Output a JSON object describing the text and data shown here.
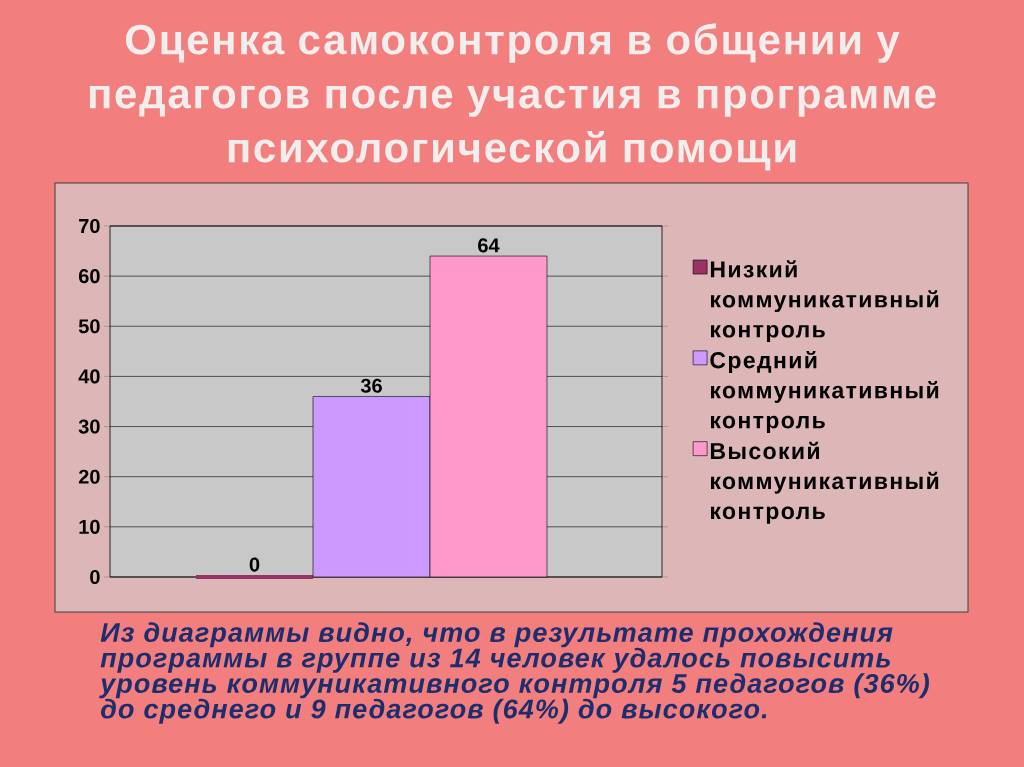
{
  "chart_data": {
    "type": "bar",
    "title": "Оценка самоконтроля в общении у педагогов после участия в программе психологической помощи",
    "categories": [
      null
    ],
    "series": [
      {
        "name": "Низкий коммуникативный контроль",
        "color": "#993366",
        "values": [
          0
        ]
      },
      {
        "name": "Средний коммуникативный контроль",
        "color": "#CC99FF",
        "values": [
          36
        ]
      },
      {
        "name": "Высокий коммуникативный контроль",
        "color": "#FF99CC",
        "values": [
          64
        ]
      }
    ],
    "ylim": [
      0,
      70
    ],
    "yticks": [
      0,
      10,
      20,
      30,
      40,
      50,
      60,
      70
    ],
    "grid": "y",
    "legend": "right",
    "data_labels": true,
    "annotations": [
      "Из диаграммы видно, что в результате прохождения программы в группе из 14 человек удалось повысить уровень коммуникативного контроля 5 педагогов (36%) до среднего и 9 педагогов (64%) до высокого."
    ]
  }
}
